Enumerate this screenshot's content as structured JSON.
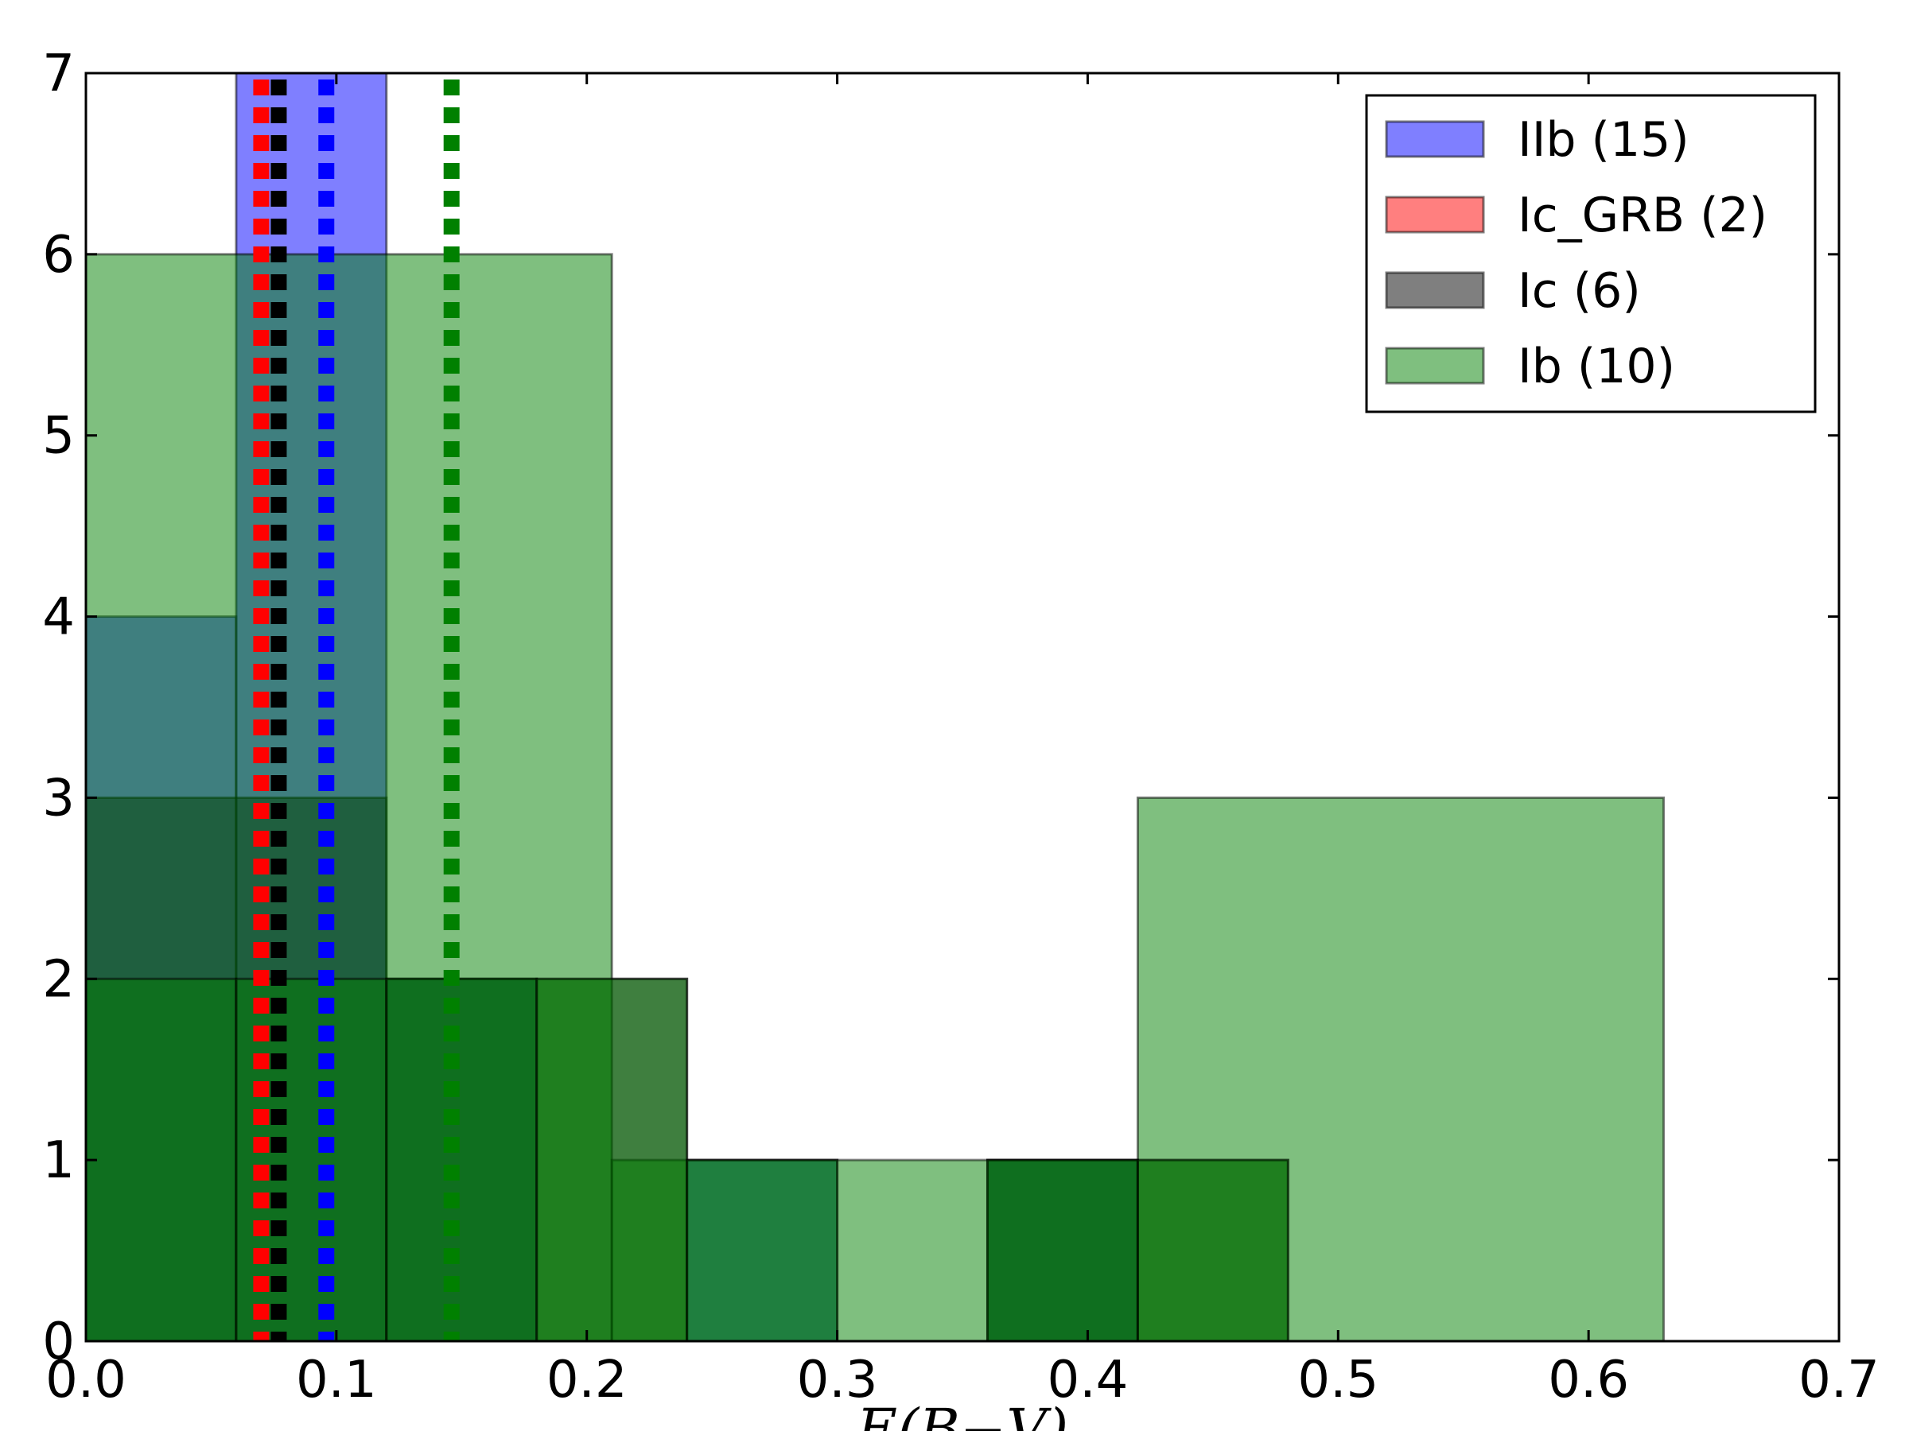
{
  "chart_data": {
    "type": "bar",
    "xlabel": "E(B−V)",
    "xlim": [
      0.0,
      0.7
    ],
    "ylim": [
      0,
      7
    ],
    "x_ticks": [
      "0.0",
      "0.1",
      "0.2",
      "0.3",
      "0.4",
      "0.5",
      "0.6",
      "0.7"
    ],
    "y_ticks": [
      "0",
      "1",
      "2",
      "3",
      "4",
      "5",
      "6",
      "7"
    ],
    "grid": false,
    "legend_position": "top-right",
    "series": [
      {
        "name": "IIb (15)",
        "color": "#0000ff",
        "alpha": 0.5,
        "bins": [
          {
            "x0": 0.0,
            "x1": 0.06,
            "count": 4
          },
          {
            "x0": 0.06,
            "x1": 0.12,
            "count": 7
          },
          {
            "x0": 0.12,
            "x1": 0.18,
            "count": 2
          },
          {
            "x0": 0.18,
            "x1": 0.24,
            "count": 0
          },
          {
            "x0": 0.24,
            "x1": 0.3,
            "count": 1
          },
          {
            "x0": 0.3,
            "x1": 0.36,
            "count": 0
          },
          {
            "x0": 0.36,
            "x1": 0.42,
            "count": 1
          }
        ],
        "median": 0.096
      },
      {
        "name": "Ic_GRB (2)",
        "color": "#ff0000",
        "alpha": 0.5,
        "bins": [],
        "median": 0.07
      },
      {
        "name": "Ic (6)",
        "color": "#000000",
        "alpha": 0.5,
        "bins": [
          {
            "x0": 0.0,
            "x1": 0.12,
            "count": 3
          },
          {
            "x0": 0.12,
            "x1": 0.24,
            "count": 2
          },
          {
            "x0": 0.24,
            "x1": 0.36,
            "count": 0
          },
          {
            "x0": 0.36,
            "x1": 0.48,
            "count": 1
          }
        ],
        "median": 0.077
      },
      {
        "name": "Ib (10)",
        "color": "#008000",
        "alpha": 0.5,
        "bins": [
          {
            "x0": 0.0,
            "x1": 0.21,
            "count": 6
          },
          {
            "x0": 0.21,
            "x1": 0.42,
            "count": 1
          },
          {
            "x0": 0.42,
            "x1": 0.63,
            "count": 3
          }
        ],
        "median": 0.146
      },
      {
        "name": "",
        "color": "#008000",
        "alpha": 0.5,
        "bins": [
          {
            "x0": 0.0,
            "x1": 0.06,
            "count": 2
          },
          {
            "x0": 0.06,
            "x1": 0.12,
            "count": 2
          },
          {
            "x0": 0.12,
            "x1": 0.18,
            "count": 2
          },
          {
            "x0": 0.18,
            "x1": 0.24,
            "count": 2
          },
          {
            "x0": 0.24,
            "x1": 0.3,
            "count": 1
          },
          {
            "x0": 0.3,
            "x1": 0.36,
            "count": 0
          },
          {
            "x0": 0.36,
            "x1": 0.42,
            "count": 1
          },
          {
            "x0": 0.42,
            "x1": 0.48,
            "count": 1
          }
        ]
      }
    ]
  }
}
